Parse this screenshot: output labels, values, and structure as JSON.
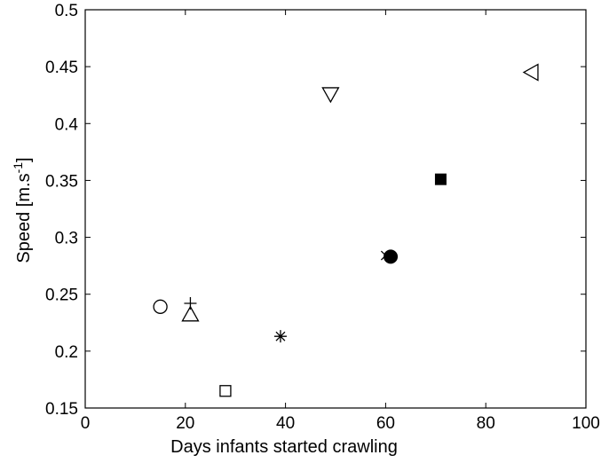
{
  "chart_data": {
    "type": "scatter",
    "title": "",
    "xlabel": "Days infants started crawling",
    "ylabel": "Speed [m.s",
    "ylabel_sup": "-1",
    "ylabel_end": "]",
    "xlim": [
      0,
      100
    ],
    "ylim": [
      0.15,
      0.5
    ],
    "xticks": [
      "0",
      "20",
      "40",
      "60",
      "80",
      "100"
    ],
    "yticks": [
      "0.15",
      "0.2",
      "0.25",
      "0.3",
      "0.35",
      "0.4",
      "0.45",
      "0.5"
    ],
    "grid": false,
    "points": [
      {
        "x": 15,
        "y": 0.239,
        "marker": "circle-open"
      },
      {
        "x": 21,
        "y": 0.242,
        "marker": "plus"
      },
      {
        "x": 21,
        "y": 0.232,
        "marker": "triangle-up-open"
      },
      {
        "x": 28,
        "y": 0.165,
        "marker": "square-open"
      },
      {
        "x": 39,
        "y": 0.213,
        "marker": "asterisk"
      },
      {
        "x": 49,
        "y": 0.426,
        "marker": "triangle-down-open"
      },
      {
        "x": 60,
        "y": 0.284,
        "marker": "x"
      },
      {
        "x": 61,
        "y": 0.283,
        "marker": "circle-filled"
      },
      {
        "x": 71,
        "y": 0.351,
        "marker": "square-filled"
      },
      {
        "x": 89,
        "y": 0.445,
        "marker": "triangle-left-open"
      }
    ]
  }
}
